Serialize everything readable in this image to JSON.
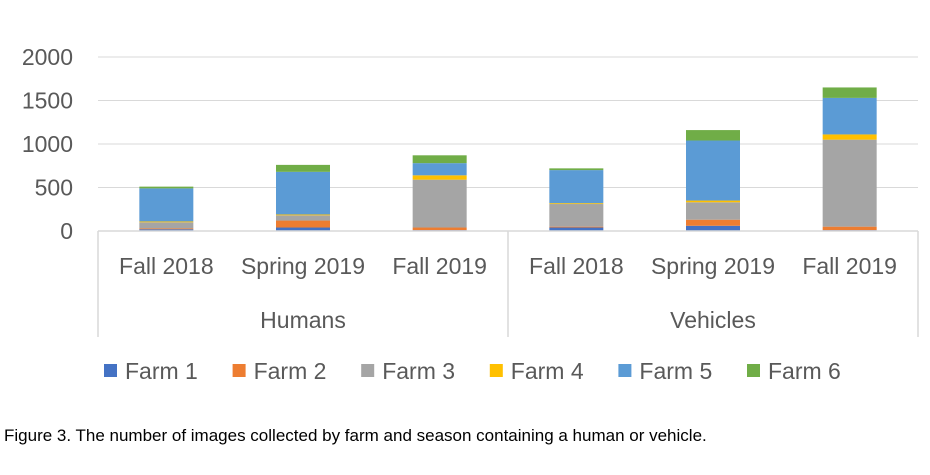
{
  "chart_data": {
    "type": "bar",
    "stacked": true,
    "y_ticks": [
      "0",
      "500",
      "1000",
      "1500",
      "2000"
    ],
    "ylim": [
      0,
      2000
    ],
    "grid": true,
    "legend_position": "bottom",
    "groups": [
      {
        "label": "Humans",
        "categories": [
          "Fall 2018",
          "Spring 2019",
          "Fall 2019"
        ]
      },
      {
        "label": "Vehicles",
        "categories": [
          "Fall 2018",
          "Spring 2019",
          "Fall 2019"
        ]
      }
    ],
    "categories": [
      "Fall 2018",
      "Spring 2019",
      "Fall 2019",
      "Fall 2018",
      "Spring 2019",
      "Fall 2019"
    ],
    "series": [
      {
        "name": "Farm 1",
        "color": "#4472C4",
        "values": [
          20,
          40,
          10,
          40,
          60,
          10
        ]
      },
      {
        "name": "Farm 2",
        "color": "#ED7D31",
        "values": [
          10,
          80,
          30,
          10,
          70,
          40
        ]
      },
      {
        "name": "Farm 3",
        "color": "#A5A5A5",
        "values": [
          70,
          60,
          550,
          260,
          200,
          1000
        ]
      },
      {
        "name": "Farm 4",
        "color": "#FFC000",
        "values": [
          10,
          10,
          50,
          10,
          20,
          60
        ]
      },
      {
        "name": "Farm 5",
        "color": "#5B9BD5",
        "values": [
          380,
          490,
          140,
          380,
          690,
          420
        ]
      },
      {
        "name": "Farm 6",
        "color": "#70AD47",
        "values": [
          20,
          80,
          90,
          20,
          120,
          120
        ]
      }
    ]
  },
  "caption": "Figure 3. The number of images collected by farm and season containing a human or vehicle."
}
